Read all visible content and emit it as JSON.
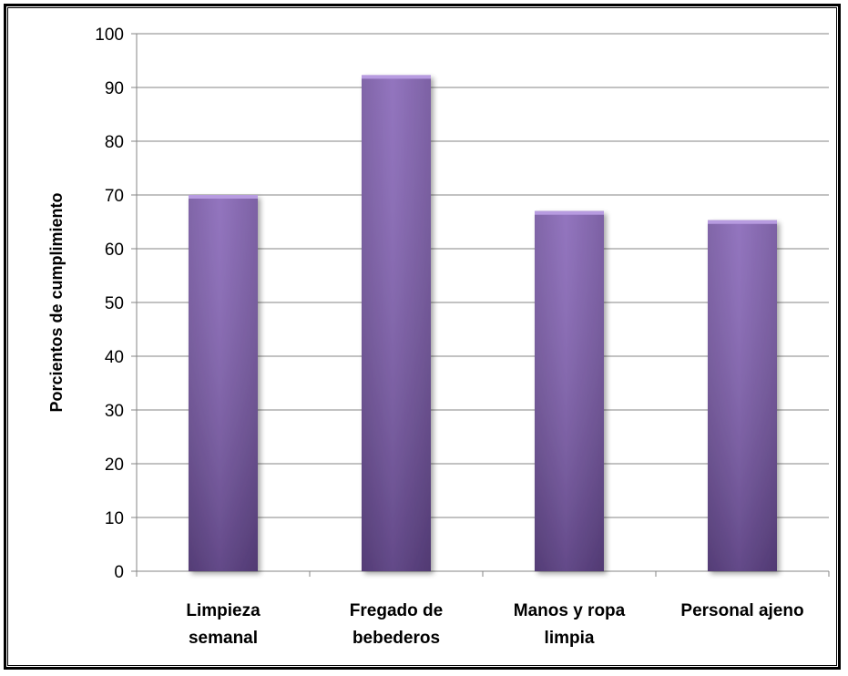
{
  "chart_data": {
    "type": "bar",
    "title": "",
    "xlabel": "",
    "ylabel": "Porcientos de cumplimiento",
    "ylim": [
      0,
      100
    ],
    "yticks": [
      0,
      10,
      20,
      30,
      40,
      50,
      60,
      70,
      80,
      90,
      100
    ],
    "grid": true,
    "legend": "none",
    "categories": [
      [
        "Limpieza",
        "semanal"
      ],
      [
        "Fregado de",
        "bebederos"
      ],
      [
        "Manos y ropa",
        "limpia"
      ],
      [
        "Personal ajeno"
      ]
    ],
    "values": [
      70,
      92.3,
      67,
      65.3
    ],
    "colors": {
      "bar_light": "#9b7fc8",
      "bar_mid": "#7b5aa8",
      "bar_dark": "#5a3f83",
      "bar_top": "#b79be0",
      "grid": "#868686",
      "axis": "#868686"
    }
  }
}
